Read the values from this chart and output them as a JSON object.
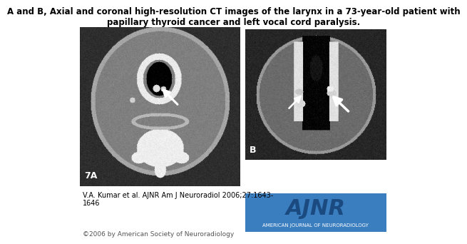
{
  "title": "A and B, Axial and coronal high-resolution CT images of the larynx in a 73-year-old patient with\npapillary thyroid cancer and left vocal cord paralysis.",
  "title_fontsize": 8.5,
  "bg_color": "#ffffff",
  "left_image_label": "7A",
  "right_image_label": "B",
  "citation": "V.A. Kumar et al. AJNR Am J Neuroradiol 2006;27:1643-\n1646",
  "citation_fontsize": 7,
  "copyright": "©2006 by American Society of Neuroradiology",
  "copyright_fontsize": 6.5,
  "ajnr_bg_color": "#3a7ebf",
  "ajnr_text": "AJNR",
  "ajnr_subtext": "AMERICAN JOURNAL OF NEURORADIOLOGY",
  "ajnr_text_color": "#1a4a80",
  "ajnr_fontsize": 22,
  "ajnr_subtext_fontsize": 5
}
